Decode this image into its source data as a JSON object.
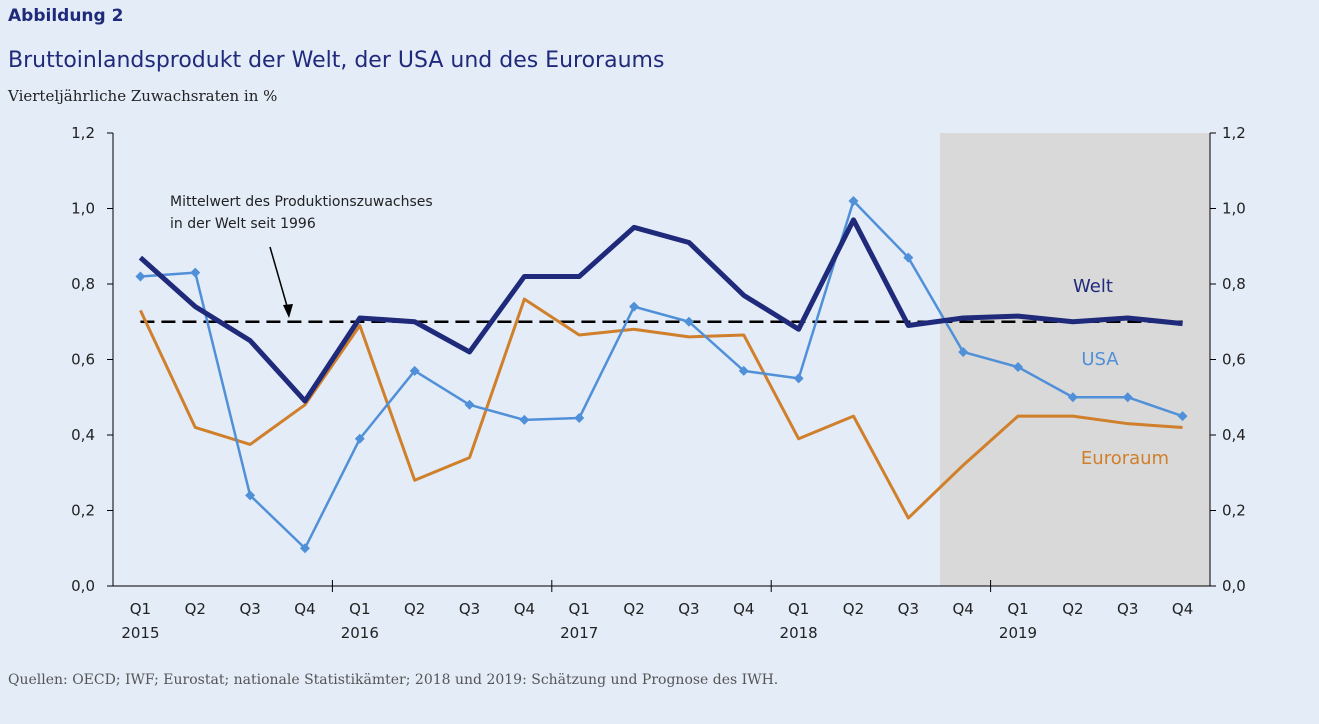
{
  "chart_data": {
    "type": "line",
    "figure_label": "Abbildung 2",
    "title": "Bruttoinlandsprodukt der Welt, der USA und des Euroraums",
    "subtitle": "Vierteljährliche Zuwachsraten in %",
    "categories": [
      "Q1",
      "Q2",
      "Q3",
      "Q4",
      "Q1",
      "Q2",
      "Q3",
      "Q4",
      "Q1",
      "Q2",
      "Q3",
      "Q4",
      "Q1",
      "Q2",
      "Q3",
      "Q4",
      "Q1",
      "Q2",
      "Q3",
      "Q4"
    ],
    "year_labels": [
      "2015",
      null,
      null,
      null,
      "2016",
      null,
      null,
      null,
      "2017",
      null,
      null,
      null,
      "2018",
      null,
      null,
      null,
      "2019",
      null,
      null,
      null
    ],
    "series": [
      {
        "name": "Welt",
        "color": "#1f2a7a",
        "values": [
          0.87,
          0.74,
          0.65,
          0.49,
          0.71,
          0.7,
          0.62,
          0.82,
          0.82,
          0.95,
          0.91,
          0.77,
          0.68,
          0.97,
          0.69,
          0.71,
          0.715,
          0.7,
          0.71,
          0.695
        ]
      },
      {
        "name": "USA",
        "color": "#5090d8",
        "marker": "diamond",
        "values": [
          0.82,
          0.83,
          0.24,
          0.1,
          0.39,
          0.57,
          0.48,
          0.44,
          0.445,
          0.74,
          0.7,
          0.57,
          0.55,
          1.02,
          0.87,
          0.62,
          0.58,
          0.5,
          0.5,
          0.45
        ]
      },
      {
        "name": "Euroraum",
        "color": "#d07f2a",
        "values": [
          0.73,
          0.42,
          0.375,
          0.48,
          0.69,
          0.28,
          0.34,
          0.76,
          0.665,
          0.68,
          0.66,
          0.665,
          0.39,
          0.45,
          0.18,
          0.32,
          0.45,
          0.45,
          0.43,
          0.42
        ]
      }
    ],
    "mean_line": {
      "value": 0.7,
      "label": [
        "Mittelwert des Produktionszuwachses",
        "in der Welt seit 1996"
      ]
    },
    "ylim": [
      0,
      1.2
    ],
    "yticks": [
      {
        "value": 0,
        "label": "0,0"
      },
      {
        "value": 0.2,
        "label": "0,2"
      },
      {
        "value": 0.4,
        "label": "0,4"
      },
      {
        "value": 0.6,
        "label": "0,6"
      },
      {
        "value": 0.8,
        "label": "0,8"
      },
      {
        "value": 1.0,
        "label": "1,0"
      },
      {
        "value": 1.2,
        "label": "1,2"
      }
    ],
    "y2lim": [
      0,
      1.2
    ],
    "y2ticks": [
      {
        "value": 0,
        "label": "0,0"
      },
      {
        "value": 0.2,
        "label": "0,2"
      },
      {
        "value": 0.4,
        "label": "0,4"
      },
      {
        "value": 0.6,
        "label": "0,6"
      },
      {
        "value": 0.8,
        "label": "0,8"
      },
      {
        "value": 1.0,
        "label": "1,0"
      },
      {
        "value": 1.2,
        "label": "1,2"
      }
    ],
    "source": "Quellen: OECD; IWF; Eurostat; nationale Statistikämter; 2018 und 2019: Schätzung und Prognose des IWH."
  }
}
